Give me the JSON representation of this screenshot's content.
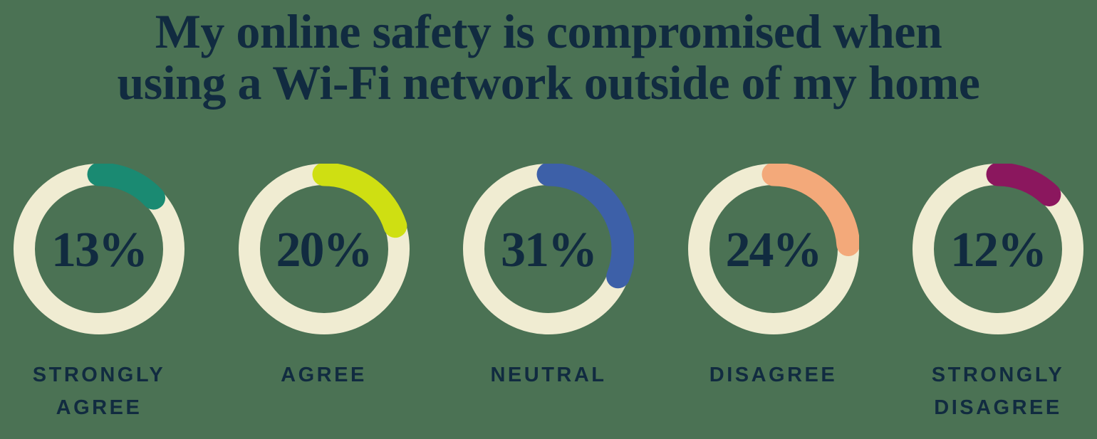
{
  "background_color": "#4b7254",
  "text_color": "#112b40",
  "title": {
    "lines": [
      "My online safety is compromised when",
      "using a Wi-Fi network outside of my home"
    ]
  },
  "chart_data": {
    "type": "pie",
    "subtype": "donut-multiples",
    "title": "My online safety is compromised when using a Wi-Fi network outside of my home",
    "value_suffix": "%",
    "ring_color": "#f0ecd2",
    "arc_start": "top",
    "arc_direction": "clockwise",
    "categories": [
      "STRONGLY AGREE",
      "AGREE",
      "NEUTRAL",
      "DISAGREE",
      "STRONGLY DISAGREE"
    ],
    "values": [
      13,
      20,
      31,
      24,
      12
    ],
    "segments": [
      {
        "id": "strongly-agree",
        "label": "STRONGLY AGREE",
        "value": 13,
        "color": "#1a8a72"
      },
      {
        "id": "agree",
        "label": "AGREE",
        "value": 20,
        "color": "#cfdf12"
      },
      {
        "id": "neutral",
        "label": "NEUTRAL",
        "value": 31,
        "color": "#3d60a8"
      },
      {
        "id": "disagree",
        "label": "DISAGREE",
        "value": 24,
        "color": "#f3a97a"
      },
      {
        "id": "strongly-disagree",
        "label": "STRONGLY DISAGREE",
        "value": 12,
        "color": "#8b175e"
      }
    ]
  }
}
